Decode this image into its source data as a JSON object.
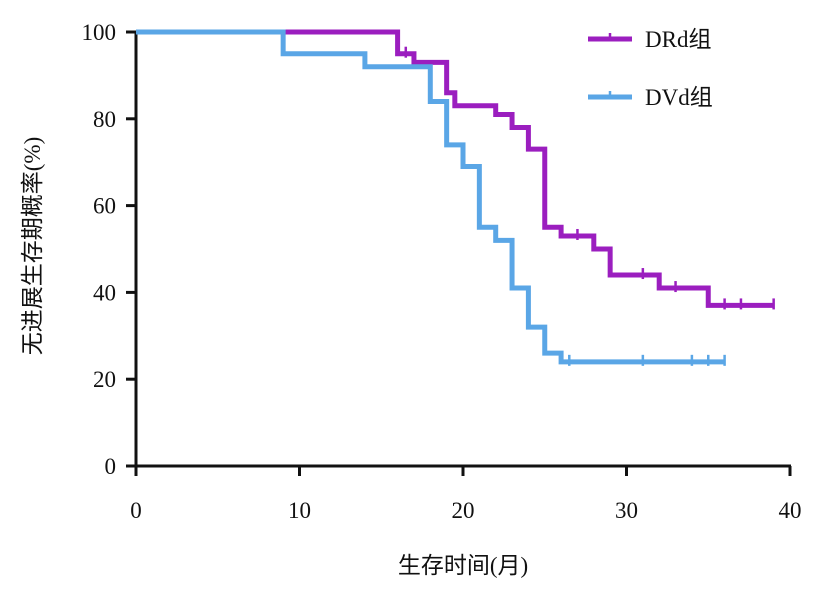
{
  "chart_data": {
    "type": "line",
    "title": "",
    "xlabel": "生存时间(月)",
    "ylabel": "无进展生存期概率(%)",
    "xlim": [
      0,
      40
    ],
    "ylim": [
      0,
      100
    ],
    "xticks": [
      0,
      10,
      20,
      30,
      40
    ],
    "yticks": [
      0,
      20,
      40,
      60,
      80,
      100
    ],
    "grid": false,
    "legend_position": "top-right",
    "series": [
      {
        "name": "DRd组",
        "color": "#9b1ebf",
        "step": true,
        "x": [
          0,
          9,
          16,
          17,
          19,
          19.5,
          20,
          22,
          23,
          24,
          25,
          26,
          28,
          29,
          31,
          32,
          35,
          39
        ],
        "y": [
          100,
          100,
          95,
          93,
          86,
          83,
          83,
          81,
          78,
          73,
          55,
          53,
          50,
          44,
          44,
          41,
          37,
          37
        ],
        "censor_x": [
          16.5,
          27,
          31,
          33,
          36,
          37,
          39
        ]
      },
      {
        "name": "DVd组",
        "color": "#5aa6e6",
        "step": true,
        "x": [
          0,
          9,
          14,
          18,
          19,
          20,
          21,
          22,
          23,
          24,
          25,
          26,
          36
        ],
        "y": [
          100,
          95,
          92,
          84,
          74,
          69,
          55,
          52,
          41,
          32,
          26,
          24,
          24
        ],
        "censor_x": [
          26.5,
          31,
          34,
          35,
          36
        ]
      }
    ]
  }
}
